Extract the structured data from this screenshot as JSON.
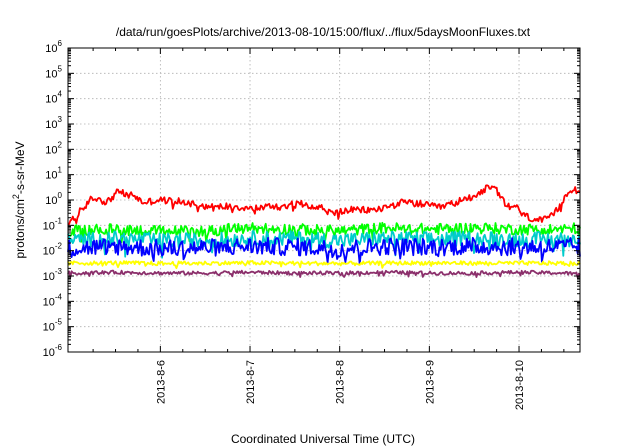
{
  "chart_data": {
    "type": "line",
    "title": "/data/run/goesPlots/archive/2013-08-10/15:00/flux/../flux/5daysMoonFluxes.txt",
    "xlabel": "Coordinated Universal Time (UTC)",
    "ylabel": {
      "prefix": "protons/cm",
      "superscript": "2",
      "suffix": "-s-sr-MeV"
    },
    "yscale": "log",
    "ylim_exponents": [
      -6,
      6
    ],
    "y_tick_base": "10",
    "y_tick_exponents": [
      "-6",
      "-5",
      "-4",
      "-3",
      "-2",
      "-1",
      "0",
      "1",
      "2",
      "3",
      "4",
      "5",
      "6"
    ],
    "xlim_days": [
      4.97,
      10.68
    ],
    "x_ticks": [
      {
        "day": 6,
        "label": "2013-8-6"
      },
      {
        "day": 7,
        "label": "2013-8-7"
      },
      {
        "day": 8,
        "label": "2013-8-8"
      },
      {
        "day": 9,
        "label": "2013-8-9"
      },
      {
        "day": 10,
        "label": "2013-8-10"
      }
    ],
    "grid": true,
    "series": [
      {
        "color": "#ff0000",
        "x_days": [
          4.97,
          5.02,
          5.06,
          5.1,
          5.14,
          5.2,
          5.3,
          5.4,
          5.55,
          5.6,
          5.7,
          5.8,
          6.0,
          6.3,
          6.6,
          6.8,
          7.0,
          7.3,
          7.6,
          7.8,
          7.9,
          8.1,
          8.4,
          8.7,
          8.9,
          9.1,
          9.3,
          9.5,
          9.65,
          9.75,
          9.85,
          9.95,
          10.05,
          10.15,
          10.25,
          10.35,
          10.45,
          10.55,
          10.62,
          10.68
        ],
        "y_values": [
          0.08,
          0.25,
          0.12,
          0.5,
          0.3,
          1.0,
          1.2,
          0.8,
          2.5,
          1.5,
          1.6,
          0.8,
          1.0,
          0.8,
          0.5,
          0.6,
          0.45,
          0.6,
          0.7,
          0.5,
          0.3,
          0.4,
          0.4,
          0.8,
          0.7,
          0.5,
          0.8,
          1.5,
          3.0,
          2.5,
          0.6,
          0.6,
          0.25,
          0.18,
          0.15,
          0.2,
          0.5,
          2.5,
          2.8,
          2.0
        ],
        "noise": 0.14
      },
      {
        "color": "#00ff00",
        "x_days": [
          4.97,
          5.5,
          6.0,
          6.5,
          7.0,
          7.5,
          8.0,
          8.5,
          9.0,
          9.5,
          10.0,
          10.5,
          10.68
        ],
        "y_values": [
          0.06,
          0.07,
          0.06,
          0.06,
          0.08,
          0.07,
          0.06,
          0.08,
          0.07,
          0.08,
          0.07,
          0.07,
          0.08
        ],
        "noise": 0.22
      },
      {
        "color": "#00cccc",
        "x_days": [
          4.97,
          5.5,
          6.0,
          6.5,
          7.0,
          7.5,
          8.0,
          8.5,
          9.0,
          9.5,
          10.0,
          10.5,
          10.68
        ],
        "y_values": [
          0.025,
          0.03,
          0.025,
          0.025,
          0.03,
          0.03,
          0.025,
          0.03,
          0.028,
          0.03,
          0.028,
          0.028,
          0.03
        ],
        "noise": 0.3
      },
      {
        "color": "#0000ff",
        "x_days": [
          4.97,
          5.5,
          6.0,
          6.5,
          7.0,
          7.5,
          8.0,
          8.5,
          9.0,
          9.5,
          10.0,
          10.5,
          10.68
        ],
        "y_values": [
          0.012,
          0.015,
          0.012,
          0.013,
          0.015,
          0.014,
          0.012,
          0.015,
          0.014,
          0.015,
          0.014,
          0.014,
          0.015
        ],
        "noise": 0.35
      },
      {
        "color": "#ffff00",
        "x_days": [
          4.97,
          5.5,
          6.0,
          6.5,
          7.0,
          7.5,
          8.0,
          8.5,
          9.0,
          9.5,
          10.0,
          10.5,
          10.68
        ],
        "y_values": [
          0.0032,
          0.0033,
          0.0031,
          0.0032,
          0.0033,
          0.0032,
          0.0031,
          0.0032,
          0.0033,
          0.0032,
          0.0032,
          0.0032,
          0.0031
        ],
        "noise": 0.08
      },
      {
        "color": "#8b2f6b",
        "x_days": [
          4.97,
          5.5,
          6.0,
          6.5,
          7.0,
          7.5,
          8.0,
          8.5,
          9.0,
          9.5,
          10.0,
          10.5,
          10.68
        ],
        "y_values": [
          0.0013,
          0.0014,
          0.0013,
          0.0013,
          0.0014,
          0.0013,
          0.0013,
          0.0014,
          0.0013,
          0.0013,
          0.0014,
          0.0013,
          0.0012
        ],
        "noise": 0.07
      }
    ]
  }
}
